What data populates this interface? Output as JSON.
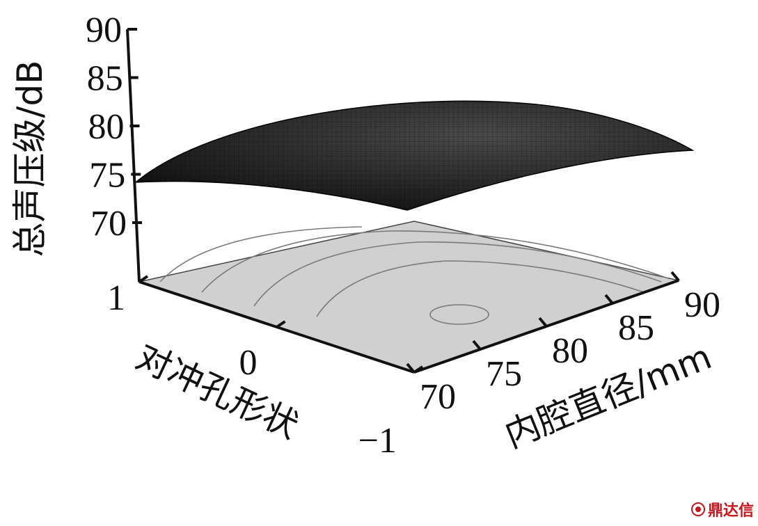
{
  "chart_data": {
    "type": "surface3d",
    "zlabel": "总声压级/dB",
    "xlabel": "内腔直径/mm",
    "ylabel": "对冲孔形状",
    "x_ticks": [
      "70",
      "75",
      "80",
      "85",
      "90"
    ],
    "y_ticks": [
      "−1",
      "0",
      "1"
    ],
    "z_ticks": [
      "70",
      "75",
      "80",
      "85",
      "90"
    ],
    "xlim": [
      70,
      90
    ],
    "ylim": [
      -1,
      1
    ],
    "zlim": [
      70,
      90
    ],
    "surface_corners": [
      {
        "x": 70,
        "y": 1,
        "z": 74.5
      },
      {
        "x": 90,
        "y": 1,
        "z": 77.5
      },
      {
        "x": 90,
        "y": -1,
        "z": 78.5
      },
      {
        "x": 70,
        "y": -1,
        "z": 71.5
      }
    ],
    "surface_peak": {
      "x": 83,
      "y": -0.3,
      "z": 80.5
    },
    "base_contour_color": "#d0d0d0",
    "surface_color": "#222222"
  },
  "watermark": "鼎达信"
}
